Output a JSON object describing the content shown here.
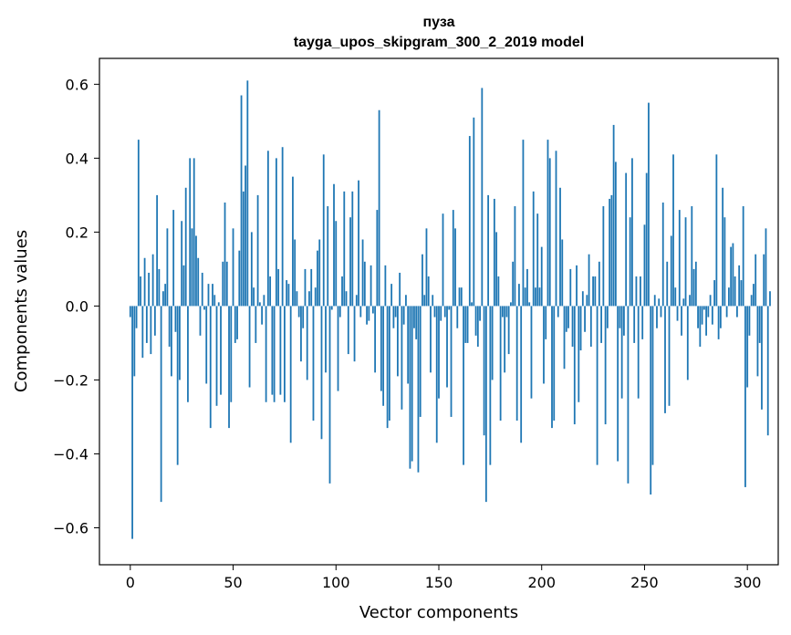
{
  "chart_data": {
    "type": "bar",
    "title": "пуза",
    "subtitle": "tayga_upos_skipgram_300_2_2019 model",
    "xlabel": "Vector components",
    "ylabel": "Components values",
    "xlim": [
      -15,
      315
    ],
    "ylim": [
      -0.7,
      0.67
    ],
    "xticks": [
      0,
      50,
      100,
      150,
      200,
      250,
      300
    ],
    "yticks": [
      -0.6,
      -0.4,
      -0.2,
      0.0,
      0.2,
      0.4,
      0.6
    ],
    "ytick_labels": [
      "−0.6",
      "−0.4",
      "−0.2",
      "0.0",
      "0.2",
      "0.4",
      "0.6"
    ],
    "bar_color": "#1f77b4",
    "grid": false,
    "legend": "none",
    "x_start": 0,
    "values": [
      -0.03,
      -0.63,
      -0.19,
      -0.06,
      0.45,
      0.08,
      -0.14,
      0.13,
      -0.1,
      0.09,
      -0.13,
      0.14,
      -0.08,
      0.3,
      0.1,
      -0.53,
      0.04,
      0.06,
      0.21,
      -0.11,
      -0.19,
      0.26,
      -0.07,
      -0.43,
      -0.2,
      0.23,
      0.11,
      0.32,
      -0.26,
      0.4,
      0.21,
      0.4,
      0.19,
      0.13,
      -0.08,
      0.09,
      -0.01,
      -0.21,
      0.06,
      -0.33,
      0.06,
      0.03,
      -0.27,
      0.01,
      -0.24,
      0.12,
      0.28,
      0.12,
      -0.33,
      -0.26,
      0.21,
      -0.1,
      -0.09,
      0.15,
      0.57,
      0.31,
      0.38,
      0.61,
      -0.22,
      0.2,
      0.05,
      -0.1,
      0.3,
      0.01,
      -0.05,
      0.03,
      -0.26,
      0.42,
      0.08,
      -0.24,
      -0.26,
      0.4,
      0.1,
      -0.24,
      0.43,
      -0.26,
      0.07,
      0.06,
      -0.37,
      0.35,
      0.18,
      0.04,
      -0.03,
      -0.15,
      -0.06,
      0.1,
      -0.2,
      0.04,
      0.1,
      -0.31,
      0.05,
      0.15,
      0.18,
      -0.36,
      0.41,
      -0.18,
      0.27,
      -0.48,
      -0.01,
      0.33,
      0.23,
      -0.23,
      -0.03,
      0.08,
      0.31,
      0.04,
      -0.13,
      0.24,
      0.31,
      -0.15,
      0.03,
      0.34,
      -0.03,
      0.18,
      0.12,
      -0.05,
      -0.04,
      0.11,
      -0.02,
      -0.18,
      0.26,
      0.53,
      -0.23,
      -0.27,
      0.11,
      -0.33,
      -0.31,
      0.06,
      -0.06,
      -0.03,
      -0.19,
      0.09,
      -0.28,
      -0.05,
      0.03,
      -0.21,
      -0.44,
      -0.42,
      -0.06,
      -0.09,
      -0.45,
      -0.3,
      0.14,
      0.03,
      0.21,
      0.08,
      -0.18,
      0.03,
      -0.03,
      -0.37,
      -0.25,
      -0.04,
      0.25,
      -0.03,
      -0.22,
      -0.01,
      -0.3,
      0.26,
      0.21,
      -0.06,
      0.05,
      0.05,
      -0.43,
      -0.1,
      -0.1,
      0.46,
      0.01,
      0.51,
      -0.08,
      -0.11,
      -0.04,
      0.59,
      -0.35,
      -0.53,
      0.3,
      -0.43,
      -0.2,
      0.29,
      0.2,
      0.08,
      -0.31,
      -0.03,
      -0.18,
      -0.03,
      -0.13,
      0.01,
      0.12,
      0.27,
      -0.31,
      0.06,
      -0.37,
      0.45,
      0.05,
      0.1,
      0.01,
      -0.25,
      0.31,
      0.05,
      0.25,
      0.05,
      0.16,
      -0.21,
      -0.09,
      0.45,
      0.4,
      -0.33,
      -0.31,
      0.42,
      -0.03,
      0.32,
      0.18,
      -0.17,
      -0.07,
      -0.06,
      0.1,
      -0.11,
      -0.32,
      0.11,
      -0.26,
      -0.12,
      0.04,
      -0.07,
      0.03,
      0.14,
      -0.11,
      0.08,
      0.08,
      -0.43,
      0.12,
      -0.1,
      0.27,
      -0.32,
      -0.06,
      0.29,
      0.3,
      0.49,
      0.39,
      -0.42,
      -0.06,
      -0.25,
      -0.08,
      0.36,
      -0.48,
      0.24,
      0.4,
      -0.1,
      0.08,
      -0.25,
      0.08,
      -0.09,
      0.22,
      0.36,
      0.55,
      -0.51,
      -0.43,
      0.03,
      -0.06,
      0.02,
      -0.03,
      0.28,
      -0.29,
      0.12,
      -0.27,
      0.19,
      0.41,
      0.05,
      -0.04,
      0.26,
      -0.08,
      0.02,
      0.24,
      -0.2,
      0.03,
      0.27,
      0.1,
      0.12,
      -0.06,
      -0.11,
      -0.05,
      -0.01,
      -0.08,
      -0.03,
      0.03,
      -0.05,
      0.07,
      0.41,
      -0.09,
      -0.06,
      0.32,
      0.24,
      -0.03,
      0.05,
      0.16,
      0.17,
      0.08,
      -0.03,
      0.11,
      0.07,
      0.27,
      -0.49,
      -0.22,
      -0.08,
      0.03,
      0.06,
      0.14,
      -0.19,
      -0.1,
      -0.28,
      0.14,
      0.21,
      -0.35,
      0.04
    ]
  }
}
